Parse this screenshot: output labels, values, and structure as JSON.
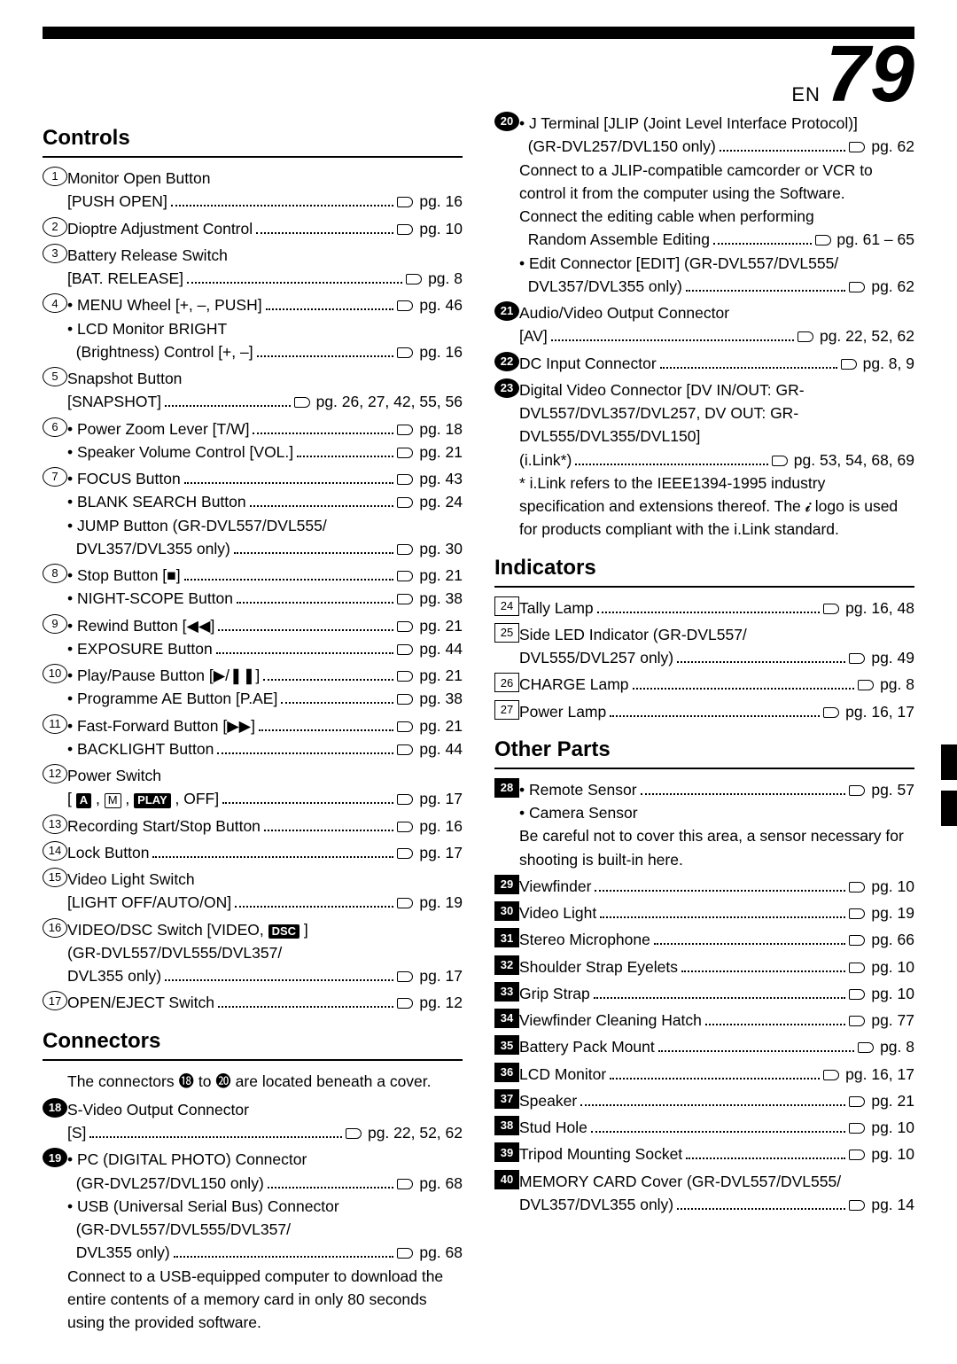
{
  "page": {
    "lang": "EN",
    "number": "79"
  },
  "sections": {
    "controls": {
      "title": "Controls",
      "items": [
        {
          "num": "1",
          "style": "circle",
          "lines": [
            {
              "text": "Monitor Open Button"
            },
            {
              "text": "[PUSH OPEN]",
              "pg": "pg. 16"
            }
          ]
        },
        {
          "num": "2",
          "style": "circle",
          "lines": [
            {
              "text": "Dioptre Adjustment Control",
              "pg": "pg. 10"
            }
          ]
        },
        {
          "num": "3",
          "style": "circle",
          "lines": [
            {
              "text": "Battery Release Switch"
            },
            {
              "text": "[BAT. RELEASE]",
              "pg": "pg. 8"
            }
          ]
        },
        {
          "num": "4",
          "style": "circle",
          "lines": [
            {
              "text": "• MENU Wheel [+, –, PUSH]",
              "pg": "pg. 46"
            },
            {
              "text": "• LCD Monitor BRIGHT"
            },
            {
              "text": "  (Brightness) Control [+, –]",
              "pg": "pg. 16"
            }
          ]
        },
        {
          "num": "5",
          "style": "circle",
          "lines": [
            {
              "text": "Snapshot Button"
            },
            {
              "text": "[SNAPSHOT]",
              "pg": "pg. 26, 27, 42, 55, 56"
            }
          ]
        },
        {
          "num": "6",
          "style": "circle",
          "lines": [
            {
              "text": "• Power Zoom Lever [T/W]",
              "pg": "pg. 18"
            },
            {
              "text": "• Speaker Volume Control [VOL.]",
              "pg": "pg. 21"
            }
          ]
        },
        {
          "num": "7",
          "style": "circle",
          "lines": [
            {
              "text": "• FOCUS Button",
              "pg": "pg. 43"
            },
            {
              "text": "• BLANK SEARCH Button",
              "pg": "pg. 24"
            },
            {
              "text": "• JUMP Button (GR-DVL557/DVL555/"
            },
            {
              "text": "  DVL357/DVL355 only)",
              "pg": "pg. 30"
            }
          ]
        },
        {
          "num": "8",
          "style": "circle",
          "lines": [
            {
              "text": "• Stop Button [■]",
              "pg": "pg. 21"
            },
            {
              "text": "• NIGHT-SCOPE Button",
              "pg": "pg. 38"
            }
          ]
        },
        {
          "num": "9",
          "style": "circle",
          "lines": [
            {
              "text": "• Rewind Button [◀◀]",
              "pg": "pg. 21"
            },
            {
              "text": "• EXPOSURE Button",
              "pg": "pg. 44"
            }
          ]
        },
        {
          "num": "10",
          "style": "circle",
          "lines": [
            {
              "text": "• Play/Pause Button [▶/❚❚]",
              "pg": "pg. 21"
            },
            {
              "text": "• Programme AE Button [P.AE]",
              "pg": "pg. 38"
            }
          ]
        },
        {
          "num": "11",
          "style": "circle",
          "lines": [
            {
              "text": "• Fast-Forward Button [▶▶]",
              "pg": "pg. 21"
            },
            {
              "text": "• BACKLIGHT Button",
              "pg": "pg. 44"
            }
          ]
        },
        {
          "num": "12",
          "style": "circle",
          "lines": [
            {
              "text": "Power Switch"
            },
            {
              "text": "[ A , M , PLAY , OFF]",
              "pg": "pg. 17",
              "special": "powerswitch"
            }
          ]
        },
        {
          "num": "13",
          "style": "circle",
          "lines": [
            {
              "text": "Recording Start/Stop Button",
              "pg": "pg. 16"
            }
          ]
        },
        {
          "num": "14",
          "style": "circle",
          "lines": [
            {
              "text": "Lock Button",
              "pg": "pg. 17"
            }
          ]
        },
        {
          "num": "15",
          "style": "circle",
          "lines": [
            {
              "text": "Video Light Switch"
            },
            {
              "text": "[LIGHT OFF/AUTO/ON]",
              "pg": "pg. 19"
            }
          ]
        },
        {
          "num": "16",
          "style": "circle",
          "lines": [
            {
              "text": "VIDEO/DSC Switch [VIDEO, DSC ]",
              "special": "dsc"
            },
            {
              "text": "(GR-DVL557/DVL555/DVL357/"
            },
            {
              "text": "DVL355 only)",
              "pg": "pg. 17"
            }
          ]
        },
        {
          "num": "17",
          "style": "circle",
          "lines": [
            {
              "text": "OPEN/EJECT Switch",
              "pg": "pg. 12"
            }
          ]
        }
      ]
    },
    "connectors": {
      "title": "Connectors",
      "intro": "The connectors ⓲ to ⓴ are located beneath a cover.",
      "items": [
        {
          "num": "18",
          "style": "blackcircle",
          "lines": [
            {
              "text": "S-Video Output Connector"
            },
            {
              "text": "[S]",
              "pg": "pg. 22, 52, 62"
            }
          ]
        },
        {
          "num": "19",
          "style": "blackcircle",
          "lines": [
            {
              "text": "• PC (DIGITAL PHOTO) Connector"
            },
            {
              "text": "  (GR-DVL257/DVL150 only)",
              "pg": "pg. 68"
            },
            {
              "text": "• USB (Universal Serial Bus) Connector"
            },
            {
              "text": "  (GR-DVL557/DVL555/DVL357/"
            },
            {
              "text": "  DVL355 only)",
              "pg": "pg. 68"
            },
            {
              "text": "  Connect to a USB-equipped computer to download the entire contents of a memory card in only 80 seconds using the provided software.",
              "wrap": true
            }
          ]
        }
      ],
      "items_right": [
        {
          "num": "20",
          "style": "blackcircle",
          "lines": [
            {
              "text": "• J Terminal [JLIP (Joint Level Interface Protocol)]"
            },
            {
              "text": "  (GR-DVL257/DVL150 only)",
              "pg": "pg. 62"
            },
            {
              "text": "  Connect to a JLIP-compatible camcorder or VCR to control it from the computer using the Software.",
              "wrap": true
            },
            {
              "text": "  Connect the editing cable when performing",
              "wrap": true
            },
            {
              "text": "  Random Assemble Editing",
              "pg": "pg. 61 – 65"
            },
            {
              "text": "• Edit Connector [EDIT] (GR-DVL557/DVL555/"
            },
            {
              "text": "  DVL357/DVL355 only)",
              "pg": "pg. 62"
            }
          ]
        },
        {
          "num": "21",
          "style": "blackcircle",
          "lines": [
            {
              "text": "Audio/Video Output Connector"
            },
            {
              "text": "[AV]",
              "pg": "pg. 22, 52, 62"
            }
          ]
        },
        {
          "num": "22",
          "style": "blackcircle",
          "lines": [
            {
              "text": "DC Input Connector",
              "pg": "pg. 8, 9"
            }
          ]
        },
        {
          "num": "23",
          "style": "blackcircle",
          "lines": [
            {
              "text": "Digital Video Connector [DV IN/OUT: GR-DVL557/DVL357/DVL257, DV OUT: GR-DVL555/DVL355/DVL150]",
              "wrap": true
            },
            {
              "text": "(i.Link*)",
              "pg": "pg. 53, 54, 68, 69"
            },
            {
              "text": "* i.Link refers to the IEEE1394-1995 industry specification and extensions thereof. The 𝓲 logo is used for products compliant with the i.Link standard.",
              "wrap": true
            }
          ]
        }
      ]
    },
    "indicators": {
      "title": "Indicators",
      "items": [
        {
          "num": "24",
          "style": "square",
          "lines": [
            {
              "text": "Tally Lamp",
              "pg": "pg. 16, 48"
            }
          ]
        },
        {
          "num": "25",
          "style": "square",
          "lines": [
            {
              "text": "Side LED Indicator (GR-DVL557/"
            },
            {
              "text": "DVL555/DVL257 only)",
              "pg": "pg. 49"
            }
          ]
        },
        {
          "num": "26",
          "style": "square",
          "lines": [
            {
              "text": "CHARGE Lamp",
              "pg": "pg. 8"
            }
          ]
        },
        {
          "num": "27",
          "style": "square",
          "lines": [
            {
              "text": "Power Lamp",
              "pg": "pg. 16, 17"
            }
          ]
        }
      ]
    },
    "other": {
      "title": "Other Parts",
      "items": [
        {
          "num": "28",
          "style": "blacksquare",
          "lines": [
            {
              "text": "• Remote Sensor",
              "pg": "pg. 57"
            },
            {
              "text": "• Camera Sensor"
            },
            {
              "text": "  Be careful not to cover this area, a sensor necessary for shooting is built-in here.",
              "wrap": true
            }
          ]
        },
        {
          "num": "29",
          "style": "blacksquare",
          "lines": [
            {
              "text": "Viewfinder",
              "pg": "pg. 10"
            }
          ]
        },
        {
          "num": "30",
          "style": "blacksquare",
          "lines": [
            {
              "text": "Video Light",
              "pg": "pg. 19"
            }
          ]
        },
        {
          "num": "31",
          "style": "blacksquare",
          "lines": [
            {
              "text": "Stereo Microphone",
              "pg": "pg. 66"
            }
          ]
        },
        {
          "num": "32",
          "style": "blacksquare",
          "lines": [
            {
              "text": "Shoulder Strap Eyelets",
              "pg": "pg. 10"
            }
          ]
        },
        {
          "num": "33",
          "style": "blacksquare",
          "lines": [
            {
              "text": "Grip Strap",
              "pg": "pg. 10"
            }
          ]
        },
        {
          "num": "34",
          "style": "blacksquare",
          "lines": [
            {
              "text": "Viewfinder Cleaning Hatch",
              "pg": "pg. 77"
            }
          ]
        },
        {
          "num": "35",
          "style": "blacksquare",
          "lines": [
            {
              "text": "Battery Pack Mount",
              "pg": "pg. 8"
            }
          ]
        },
        {
          "num": "36",
          "style": "blacksquare",
          "lines": [
            {
              "text": "LCD Monitor",
              "pg": "pg. 16, 17"
            }
          ]
        },
        {
          "num": "37",
          "style": "blacksquare",
          "lines": [
            {
              "text": "Speaker",
              "pg": "pg. 21"
            }
          ]
        },
        {
          "num": "38",
          "style": "blacksquare",
          "lines": [
            {
              "text": "Stud Hole",
              "pg": "pg. 10"
            }
          ]
        },
        {
          "num": "39",
          "style": "blacksquare",
          "lines": [
            {
              "text": "Tripod Mounting Socket",
              "pg": "pg. 10"
            }
          ]
        },
        {
          "num": "40",
          "style": "blacksquare",
          "lines": [
            {
              "text": "MEMORY CARD Cover (GR-DVL557/DVL555/"
            },
            {
              "text": "DVL357/DVL355 only)",
              "pg": "pg. 14"
            }
          ]
        }
      ]
    }
  }
}
